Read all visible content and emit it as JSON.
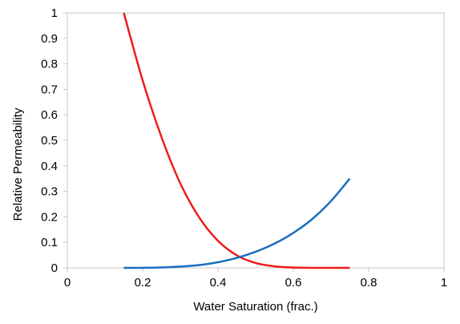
{
  "chart_data": {
    "type": "line",
    "title": "",
    "xlabel": "Water Saturation (frac.)",
    "ylabel": "Relative Permeability",
    "xlim": [
      0,
      1
    ],
    "ylim": [
      0,
      1
    ],
    "xticks": [
      0,
      0.2,
      0.4,
      0.6,
      0.8,
      1
    ],
    "xtick_labels": [
      "0",
      "0.2",
      "0.4",
      "0.6",
      "0.8",
      "1"
    ],
    "yticks": [
      0,
      0.1,
      0.2,
      0.3,
      0.4,
      0.5,
      0.6,
      0.7,
      0.8,
      0.9,
      1
    ],
    "ytick_labels": [
      "0",
      "0.1",
      "0.2",
      "0.3",
      "0.4",
      "0.5",
      "0.6",
      "0.7",
      "0.8",
      "0.9",
      "1"
    ],
    "grid": false,
    "legend": "none",
    "series": [
      {
        "color": "#ee1c1c",
        "x": [
          0.15,
          0.2,
          0.25,
          0.3,
          0.35,
          0.4,
          0.45,
          0.5,
          0.55,
          0.6,
          0.65,
          0.7,
          0.75
        ],
        "y": [
          1.0,
          0.735,
          0.513,
          0.331,
          0.198,
          0.106,
          0.049,
          0.019,
          0.006,
          0.0013,
          0.0002,
          0.0,
          0.0
        ]
      },
      {
        "color": "#1a6fbf",
        "x": [
          0.15,
          0.2,
          0.25,
          0.3,
          0.35,
          0.4,
          0.45,
          0.5,
          0.55,
          0.6,
          0.65,
          0.7,
          0.75
        ],
        "y": [
          0.0,
          0.0002,
          0.0014,
          0.005,
          0.011,
          0.022,
          0.039,
          0.063,
          0.095,
          0.137,
          0.191,
          0.262,
          0.35
        ]
      }
    ]
  }
}
